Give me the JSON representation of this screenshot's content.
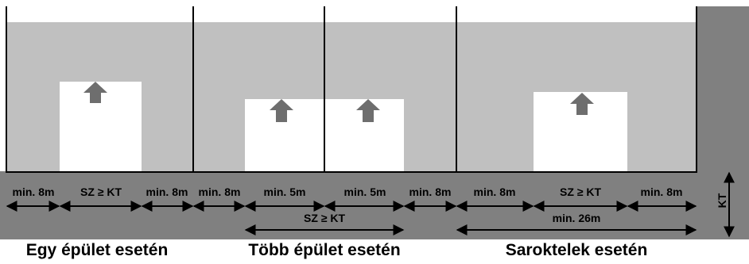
{
  "colors": {
    "lot_fill": "#c0c0c0",
    "road_fill": "#808080",
    "building_fill": "#ffffff",
    "arrow_fill": "#6e6e6e",
    "line": "#000000"
  },
  "segments": {
    "egy": [
      "min. 8m",
      "SZ ≥ KT",
      "min. 8m"
    ],
    "tobb": [
      "min. 8m",
      "min. 5m",
      "min. 5m",
      "min. 8m"
    ],
    "sarok": [
      "min. 8m",
      "SZ ≥ KT",
      "min. 8m"
    ]
  },
  "spans": {
    "tobb_total": "SZ ≥ KT",
    "sarok_total": "min. 26m"
  },
  "side_label": "KT",
  "cases": {
    "egy": "Egy épület esetén",
    "tobb": "Több épület esetén",
    "sarok": "Saroktelek esetén"
  }
}
